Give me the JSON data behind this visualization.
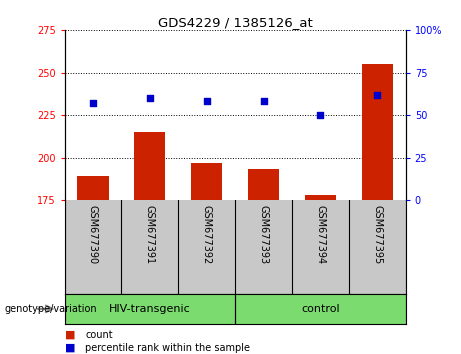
{
  "title": "GDS4229 / 1385126_at",
  "samples": [
    "GSM677390",
    "GSM677391",
    "GSM677392",
    "GSM677393",
    "GSM677394",
    "GSM677395"
  ],
  "count_values": [
    189,
    215,
    197,
    193,
    178,
    255
  ],
  "percentile_values": [
    57,
    60,
    58,
    58,
    50,
    62
  ],
  "ylim_left": [
    175,
    275
  ],
  "ylim_right": [
    0,
    100
  ],
  "yticks_left": [
    175,
    200,
    225,
    250,
    275
  ],
  "yticks_right": [
    0,
    25,
    50,
    75,
    100
  ],
  "bar_color": "#cc2200",
  "dot_color": "#0000cc",
  "background_plot": "#ffffff",
  "background_label": "#c8c8c8",
  "background_group": "#7cdb6e",
  "groups": [
    {
      "label": "HIV-transgenic",
      "start": 0,
      "end": 3
    },
    {
      "label": "control",
      "start": 3,
      "end": 6
    }
  ],
  "group_label_prefix": "genotype/variation",
  "legend_count": "count",
  "legend_percentile": "percentile rank within the sample",
  "bar_bottom": 175,
  "bar_width": 0.55
}
